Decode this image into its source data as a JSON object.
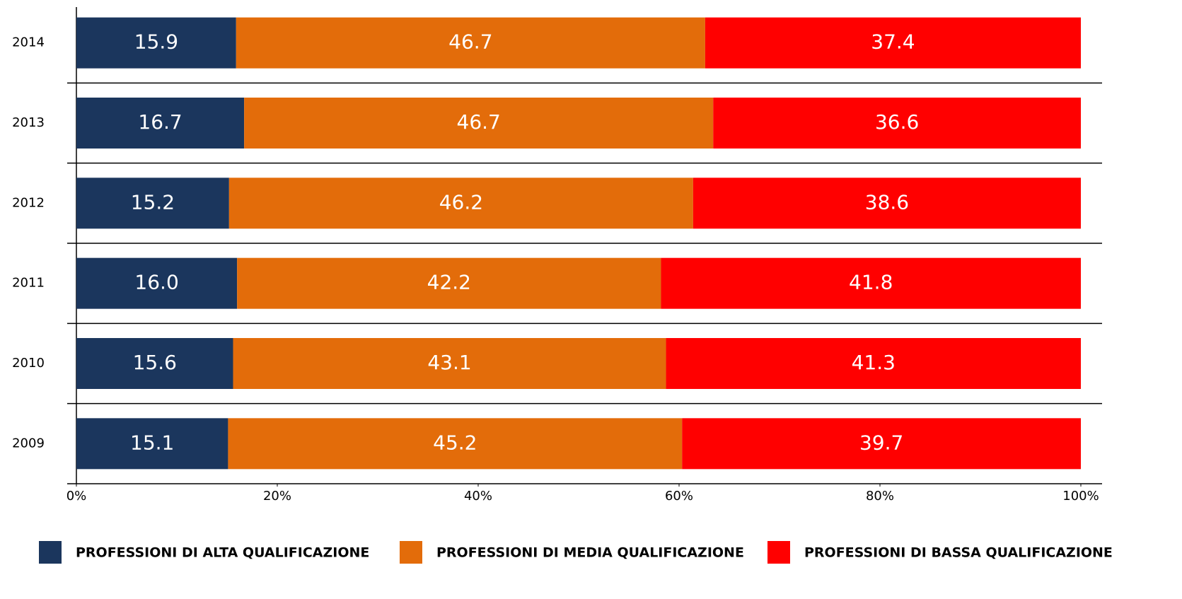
{
  "chart_data": {
    "type": "stacked_bar_horizontal",
    "categories": [
      "2014",
      "2013",
      "2012",
      "2011",
      "2010",
      "2009"
    ],
    "series": [
      {
        "name": "PROFESSIONI DI ALTA QUALIFICAZIONE",
        "color": "#1b365d",
        "values": [
          15.9,
          16.7,
          15.2,
          16.0,
          15.6,
          15.1
        ],
        "value_labels": [
          "15.9",
          "16.7",
          "15.2",
          "16.0",
          "15.6",
          "15.1"
        ]
      },
      {
        "name": "PROFESSIONI DI MEDIA QUALIFICAZIONE",
        "color": "#e36c0a",
        "values": [
          46.7,
          46.7,
          46.2,
          42.2,
          43.1,
          45.2
        ],
        "value_labels": [
          "46.7",
          "46.7",
          "46.2",
          "42.2",
          "43.1",
          "45.2"
        ]
      },
      {
        "name": "PROFESSIONI DI BASSA QUALIFICAZIONE",
        "color": "#ff0000",
        "values": [
          37.4,
          36.6,
          38.6,
          41.8,
          41.3,
          39.7
        ],
        "value_labels": [
          "37.4",
          "36.6",
          "38.6",
          "41.8",
          "41.3",
          "39.7"
        ]
      }
    ],
    "xlim": [
      0,
      100
    ],
    "xticks": [
      {
        "value": 0,
        "label": "0%"
      },
      {
        "value": 20,
        "label": "20%"
      },
      {
        "value": 40,
        "label": "40%"
      },
      {
        "value": 60,
        "label": "60%"
      },
      {
        "value": 80,
        "label": "80%"
      },
      {
        "value": 100,
        "label": "100%"
      }
    ],
    "legend": "bottom"
  }
}
